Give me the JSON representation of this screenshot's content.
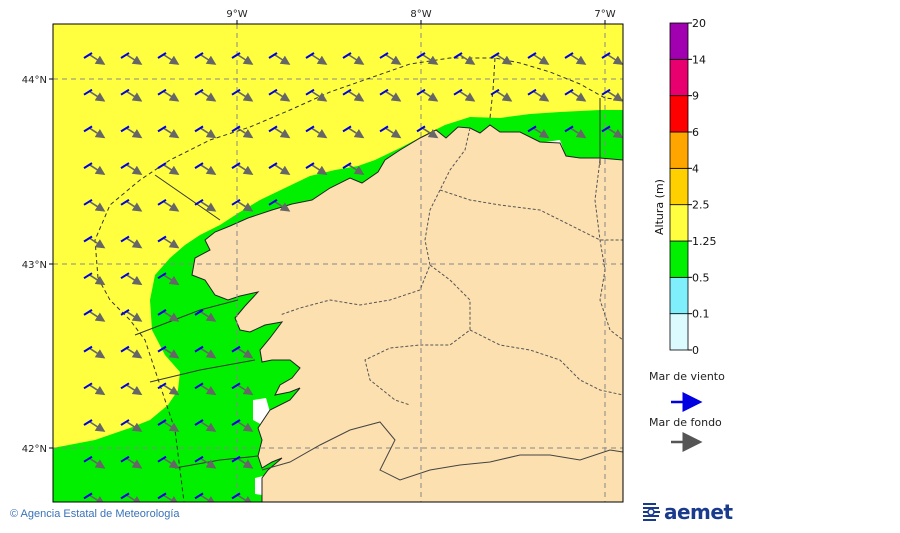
{
  "map": {
    "lon_labels": [
      "9°W",
      "8°W",
      "7°W"
    ],
    "lat_labels": [
      "44°N",
      "43°N",
      "42°N"
    ]
  },
  "colorbar": {
    "title": "Altura (m)",
    "levels": [
      "0",
      "0.1",
      "0.5",
      "1.25",
      "2.5",
      "4",
      "6",
      "9",
      "14",
      "20"
    ],
    "colors": [
      "#dbfbff",
      "#7ff0fb",
      "#00f000",
      "#ffff40",
      "#ffd000",
      "#ffa500",
      "#ff0000",
      "#e8006e",
      "#a000b0"
    ]
  },
  "legend": {
    "wind_sea_label": "Mar de viento",
    "wind_sea_color": "#0000e0",
    "swell_label": "Mar de fondo",
    "swell_color": "#555555"
  },
  "footer": {
    "copyright": "© Agencia Estatal de Meteorología"
  },
  "logo": {
    "text": "aemet"
  },
  "colors": {
    "sea_high": "#ffff40",
    "sea_mid": "#00f000",
    "land": "#fde0b0"
  }
}
